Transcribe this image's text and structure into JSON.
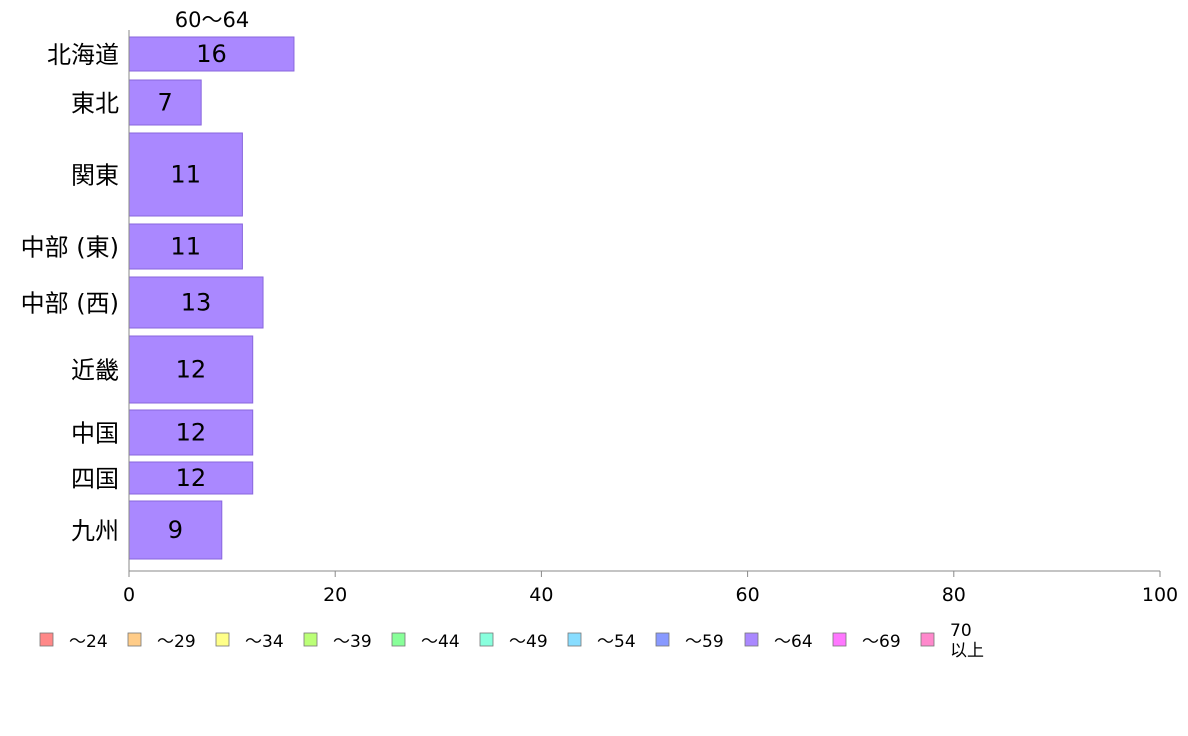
{
  "chart_data": {
    "type": "bar",
    "orientation": "horizontal",
    "series_title": "60〜64",
    "categories": [
      "北海道",
      "東北",
      "関東",
      "中部 (東)",
      "中部 (西)",
      "近畿",
      "中国",
      "四国",
      "九州"
    ],
    "values": [
      16,
      7,
      11,
      11,
      13,
      12,
      12,
      12,
      9
    ],
    "bar_value_labels": [
      "16",
      "7",
      "11",
      "11",
      "13",
      "12",
      "12",
      "12",
      "9"
    ],
    "xlim": [
      0,
      100
    ],
    "x_ticks": [
      "0",
      "20",
      "40",
      "60",
      "80",
      "100"
    ],
    "grid": false,
    "bar_color": "#aa88ff",
    "bar_border_color": "#8866dd",
    "legend": {
      "placement": "bottom",
      "items": [
        {
          "label": "〜24",
          "color": "#ff8888"
        },
        {
          "label": "〜29",
          "color": "#ffcc88"
        },
        {
          "label": "〜34",
          "color": "#ffff88"
        },
        {
          "label": "〜39",
          "color": "#bbff77"
        },
        {
          "label": "〜44",
          "color": "#88ff99"
        },
        {
          "label": "〜49",
          "color": "#88ffdd"
        },
        {
          "label": "〜54",
          "color": "#88ddff"
        },
        {
          "label": "〜59",
          "color": "#8899ff"
        },
        {
          "label": "〜64",
          "color": "#aa88ff"
        },
        {
          "label": "〜69",
          "color": "#ff77ff"
        },
        {
          "label": "70\n以上",
          "color": "#ff88cc"
        }
      ]
    }
  }
}
